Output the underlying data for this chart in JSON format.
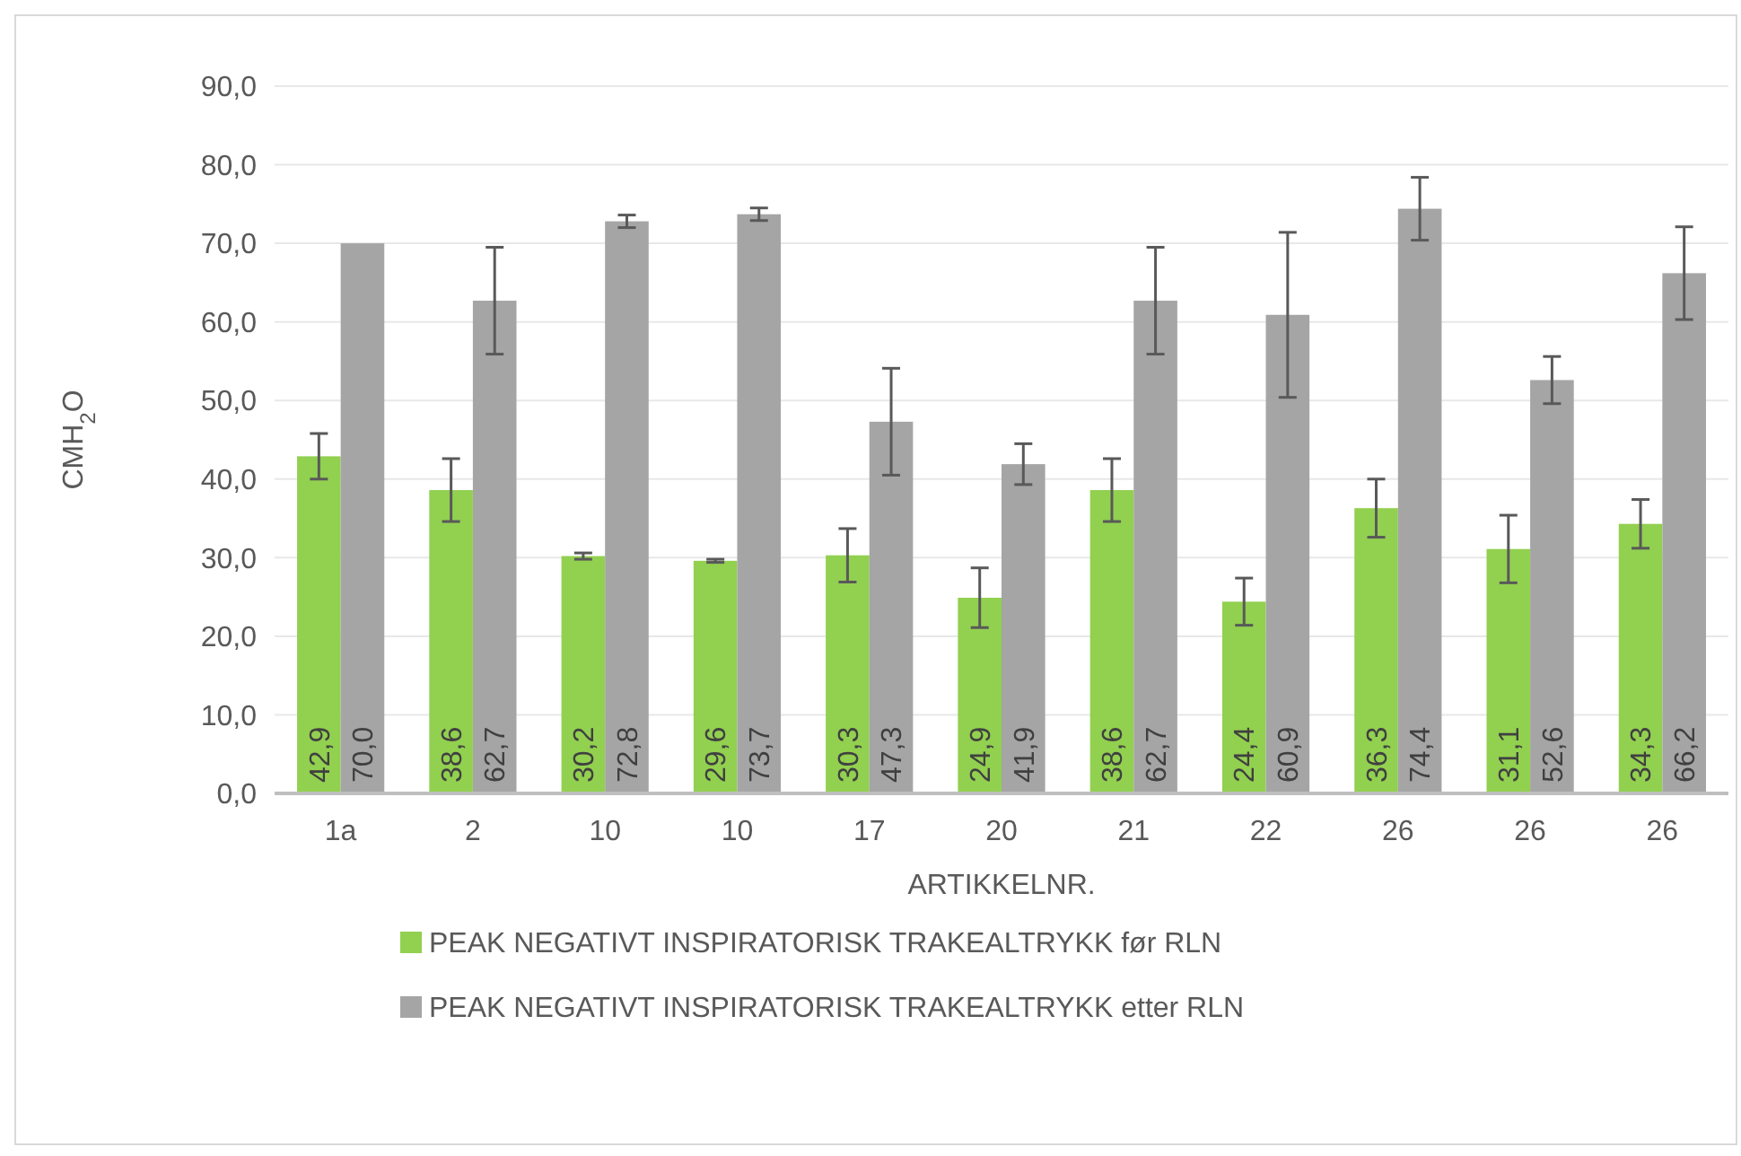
{
  "chart_data": {
    "type": "bar",
    "categories": [
      "1a",
      "2",
      "10",
      "10",
      "17",
      "20",
      "21",
      "22",
      "26",
      "26",
      "26"
    ],
    "series": [
      {
        "name": "PEAK NEGATIVT INSPIRATORISK TRAKEALTRYKK før RLN",
        "color": "#92d050",
        "values": [
          42.9,
          38.6,
          30.2,
          29.6,
          30.3,
          24.9,
          38.6,
          24.4,
          36.3,
          31.1,
          34.3
        ],
        "errors": [
          2.9,
          4.0,
          0.4,
          0.2,
          3.4,
          3.8,
          4.0,
          3.0,
          3.7,
          4.3,
          3.1
        ],
        "value_labels": [
          "42,9",
          "38,6",
          "30,2",
          "29,6",
          "30,3",
          "24,9",
          "38,6",
          "24,4",
          "36,3",
          "31,1",
          "34,3"
        ]
      },
      {
        "name": "PEAK NEGATIVT INSPIRATORISK TRAKEALTRYKK etter RLN",
        "color": "#a5a5a5",
        "values": [
          70.0,
          62.7,
          72.8,
          73.7,
          47.3,
          41.9,
          62.7,
          60.9,
          74.4,
          52.6,
          66.2
        ],
        "errors": [
          null,
          6.8,
          0.8,
          0.8,
          6.8,
          2.6,
          6.8,
          10.5,
          4.0,
          3.0,
          5.9
        ],
        "value_labels": [
          "70,0",
          "62,7",
          "72,8",
          "73,7",
          "47,3",
          "41,9",
          "62,7",
          "60,9",
          "74,4",
          "52,6",
          "66,2"
        ]
      }
    ],
    "xlabel": "ARTIKKELNR.",
    "ylabel": "CMH$_{2}$O",
    "ylim": [
      0,
      90
    ],
    "yticks": [
      {
        "value": 0,
        "label": "0,0"
      },
      {
        "value": 10,
        "label": "10,0"
      },
      {
        "value": 20,
        "label": "20,0"
      },
      {
        "value": 30,
        "label": "30,0"
      },
      {
        "value": 40,
        "label": "40,0"
      },
      {
        "value": 50,
        "label": "50,0"
      },
      {
        "value": 60,
        "label": "60,0"
      },
      {
        "value": 70,
        "label": "70,0"
      },
      {
        "value": 80,
        "label": "80,0"
      },
      {
        "value": 90,
        "label": "90,0"
      }
    ],
    "grid": "y",
    "legend": "bottom"
  }
}
